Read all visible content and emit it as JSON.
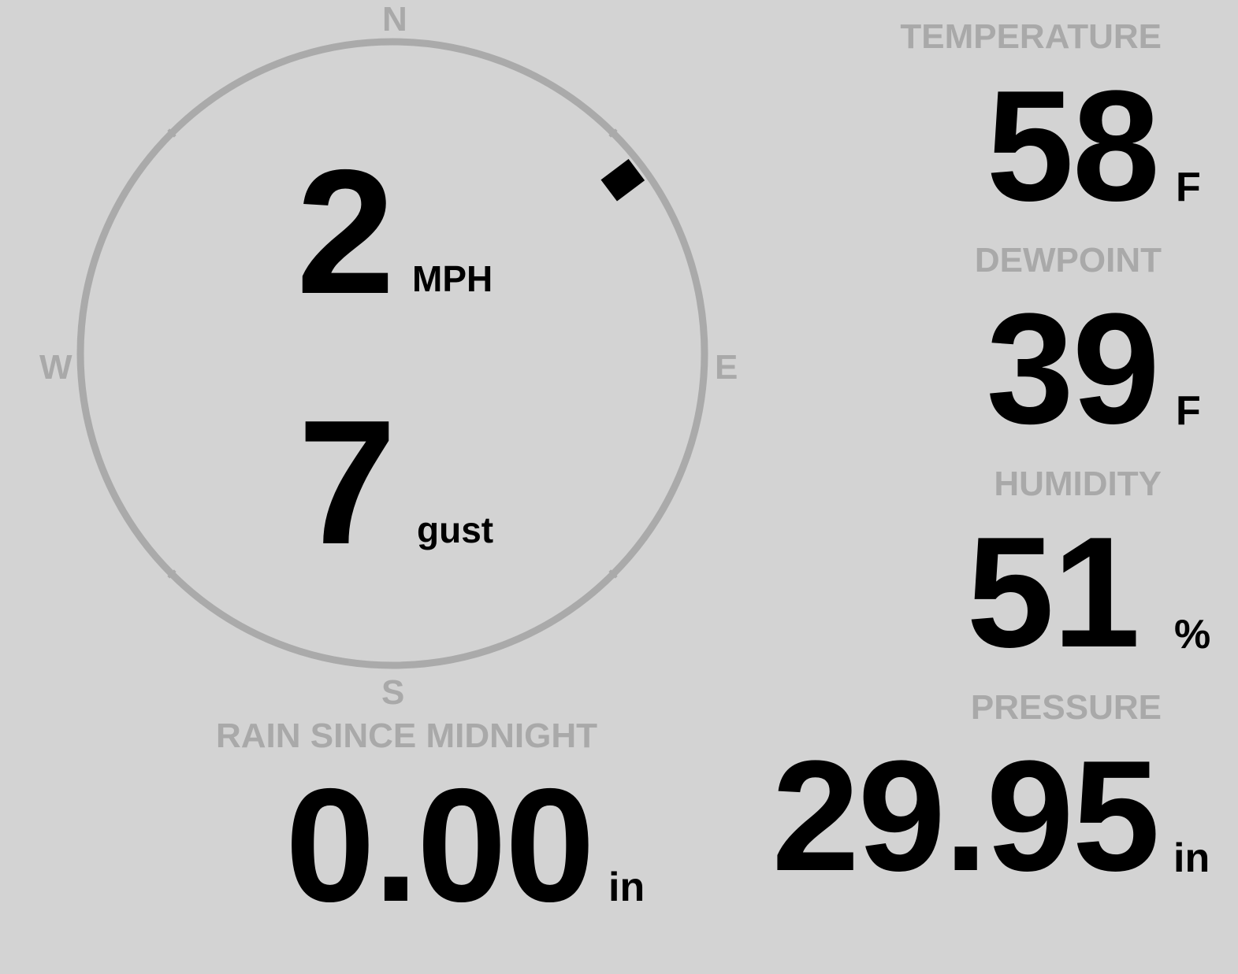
{
  "colors": {
    "background": "#d3d3d3",
    "label": "#a9a9a9",
    "value": "#000000",
    "ring": "#aaaaaa"
  },
  "wind": {
    "compass": {
      "north": "N",
      "east": "E",
      "south": "S",
      "west": "W"
    },
    "direction_degrees": 53,
    "speed": "2",
    "speed_unit": "MPH",
    "gust": "7",
    "gust_label": "gust"
  },
  "temperature": {
    "label": "TEMPERATURE",
    "value": "58",
    "unit": "F"
  },
  "dewpoint": {
    "label": "DEWPOINT",
    "value": "39",
    "unit": "F"
  },
  "humidity": {
    "label": "HUMIDITY",
    "value": "51",
    "unit": "%"
  },
  "rain": {
    "label": "RAIN SINCE MIDNIGHT",
    "value": "0.00",
    "unit": "in"
  },
  "pressure": {
    "label": "PRESSURE",
    "value": "29.95",
    "unit": "in"
  }
}
